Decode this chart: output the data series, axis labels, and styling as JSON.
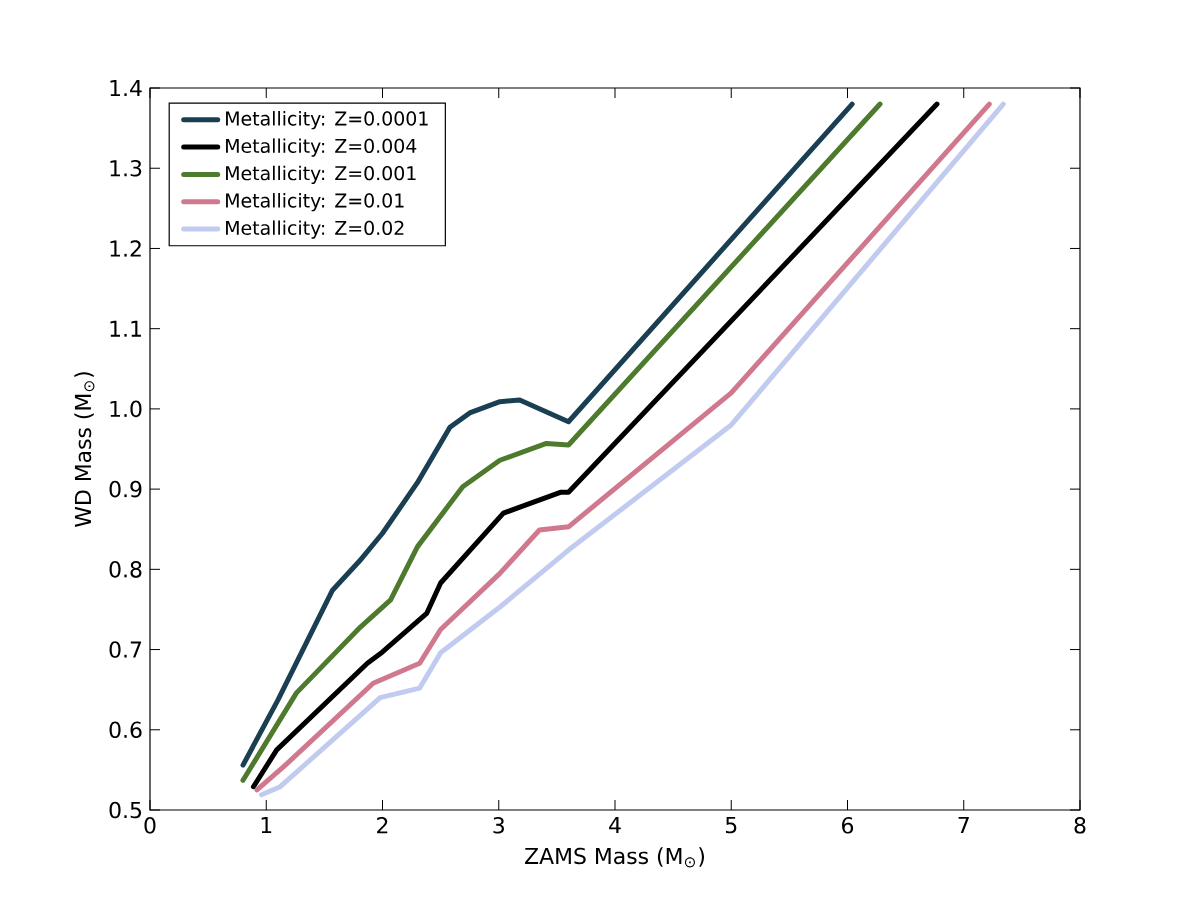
{
  "chart_data": {
    "type": "line",
    "xlabel": "ZAMS Mass (M$_{⊙}$)",
    "ylabel": "WD Mass (M$_{⊙}$)",
    "xlim": [
      0,
      8
    ],
    "ylim": [
      0.5,
      1.4
    ],
    "xticks": [
      0,
      1,
      2,
      3,
      4,
      5,
      6,
      7,
      8
    ],
    "yticks": [
      0.5,
      0.6,
      0.7,
      0.8,
      0.9,
      {
        "value": 1.0,
        "label": "1.0"
      },
      1.1,
      1.2,
      1.3,
      1.4
    ],
    "grid": false,
    "legend": "top left",
    "marker": "none",
    "line_style": "solid",
    "series": [
      {
        "name": "Metallicity: Z=0.0001",
        "color": "#1a3f52",
        "x": [
          0.8,
          1.1,
          1.57,
          1.8,
          2.0,
          2.3,
          2.58,
          2.75,
          3.01,
          3.18,
          3.6,
          6.04
        ],
        "values": [
          0.556,
          0.637,
          0.774,
          0.81,
          0.845,
          0.908,
          0.977,
          0.995,
          1.009,
          1.011,
          0.984,
          1.38
        ]
      },
      {
        "name": "Metallicity: Z=0.004",
        "color": "#000000",
        "x": [
          0.89,
          1.09,
          1.87,
          2.0,
          2.38,
          2.5,
          3.04,
          3.53,
          3.6,
          6.77
        ],
        "values": [
          0.529,
          0.575,
          0.683,
          0.697,
          0.745,
          0.783,
          0.87,
          0.896,
          0.896,
          1.38
        ]
      },
      {
        "name": "Metallicity: Z=0.001",
        "color": "#4e7a2e",
        "x": [
          0.8,
          1.26,
          1.81,
          2.07,
          2.3,
          2.69,
          3.01,
          3.41,
          3.6,
          6.28
        ],
        "values": [
          0.537,
          0.646,
          0.728,
          0.762,
          0.828,
          0.903,
          0.936,
          0.957,
          0.955,
          1.38
        ]
      },
      {
        "name": "Metallicity: Z=0.01",
        "color": "#d0798e",
        "x": [
          0.92,
          1.15,
          1.92,
          2.32,
          2.5,
          3.01,
          3.35,
          3.6,
          5.0,
          7.22
        ],
        "values": [
          0.525,
          0.554,
          0.658,
          0.683,
          0.725,
          0.795,
          0.849,
          0.853,
          1.02,
          1.38
        ]
      },
      {
        "name": "Metallicity: Z=0.02",
        "color": "#c1cbf0",
        "x": [
          0.96,
          1.12,
          1.98,
          2.32,
          2.5,
          3.01,
          3.6,
          5.0,
          7.34
        ],
        "values": [
          0.519,
          0.529,
          0.64,
          0.652,
          0.696,
          0.753,
          0.824,
          0.98,
          1.38
        ]
      }
    ]
  }
}
